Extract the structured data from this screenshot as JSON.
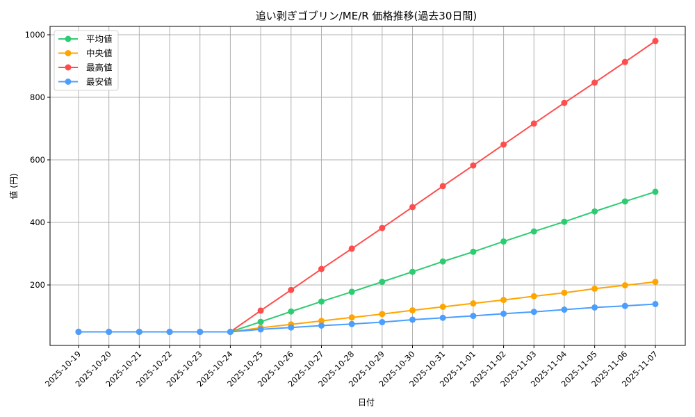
{
  "chart_data": {
    "type": "line",
    "title": "追い剥ぎゴブリン/ME/R 価格推移(過去30日間)",
    "xlabel": "日付",
    "ylabel": "値 (円)",
    "ylim": [
      0,
      1030
    ],
    "yticks": [
      200,
      400,
      600,
      800,
      1000
    ],
    "grid": true,
    "legend_position": "upper left",
    "categories": [
      "2025-10-19",
      "2025-10-20",
      "2025-10-21",
      "2025-10-22",
      "2025-10-23",
      "2025-10-24",
      "2025-10-25",
      "2025-10-26",
      "2025-10-27",
      "2025-10-28",
      "2025-10-29",
      "2025-10-30",
      "2025-10-31",
      "2025-11-01",
      "2025-11-02",
      "2025-11-03",
      "2025-11-04",
      "2025-11-05",
      "2025-11-06",
      "2025-11-07"
    ],
    "series": [
      {
        "name": "平均値",
        "color": "#2ecc71",
        "values": [
          50,
          50,
          50,
          50,
          50,
          50,
          82,
          115,
          147,
          178,
          210,
          242,
          275,
          306,
          339,
          371,
          402,
          435,
          467,
          498
        ]
      },
      {
        "name": "中央値",
        "color": "#ffa500",
        "values": [
          50,
          50,
          50,
          50,
          50,
          50,
          63,
          74,
          85,
          96,
          107,
          119,
          130,
          141,
          152,
          164,
          175,
          188,
          199,
          210
        ]
      },
      {
        "name": "最高値",
        "color": "#ff4d4d",
        "values": [
          50,
          50,
          50,
          50,
          50,
          50,
          118,
          184,
          251,
          316,
          382,
          449,
          516,
          582,
          649,
          716,
          782,
          847,
          913,
          980
        ]
      },
      {
        "name": "最安値",
        "color": "#4a9eff",
        "values": [
          50,
          50,
          50,
          50,
          50,
          50,
          58,
          64,
          70,
          75,
          81,
          89,
          95,
          101,
          108,
          114,
          121,
          128,
          133,
          139
        ]
      }
    ]
  }
}
